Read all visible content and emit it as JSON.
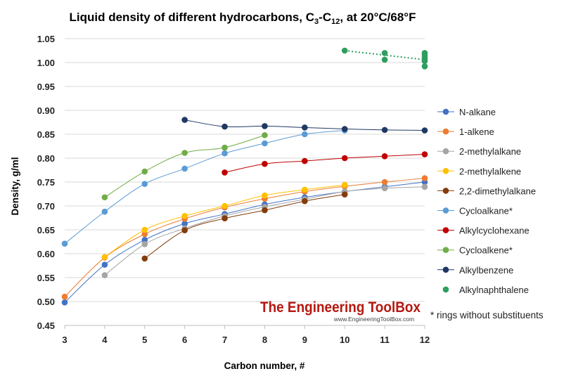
{
  "chart_data": {
    "type": "line",
    "title_parts": [
      "Liquid density of different hydrocarbons, C",
      "3",
      "-C",
      "12",
      ", at 20°C/68°F"
    ],
    "xlabel": "Carbon number, #",
    "ylabel": "Density, g/ml",
    "xlim": [
      3,
      12
    ],
    "ylim": [
      0.45,
      1.05
    ],
    "x_ticks": [
      "3",
      "4",
      "5",
      "6",
      "7",
      "8",
      "9",
      "10",
      "11",
      "12"
    ],
    "y_ticks": [
      "0.45",
      "0.50",
      "0.55",
      "0.60",
      "0.65",
      "0.70",
      "0.75",
      "0.80",
      "0.85",
      "0.90",
      "0.95",
      "1.00",
      "1.05"
    ],
    "grid": "horizontal",
    "legend_position": "right",
    "series": [
      {
        "name": "N-alkane",
        "color": "#4472c4",
        "points": [
          [
            3,
            0.498
          ],
          [
            4,
            0.577
          ],
          [
            5,
            0.629
          ],
          [
            6,
            0.663
          ],
          [
            7,
            0.683
          ],
          [
            8,
            0.703
          ],
          [
            9,
            0.718
          ],
          [
            10,
            0.73
          ],
          [
            11,
            0.74
          ],
          [
            12,
            0.75
          ]
        ]
      },
      {
        "name": "1-alkene",
        "color": "#ed7d31",
        "points": [
          [
            3,
            0.51
          ],
          [
            4,
            0.592
          ],
          [
            5,
            0.641
          ],
          [
            6,
            0.673
          ],
          [
            7,
            0.697
          ],
          [
            8,
            0.715
          ],
          [
            9,
            0.73
          ],
          [
            10,
            0.741
          ],
          [
            11,
            0.75
          ],
          [
            12,
            0.758
          ]
        ]
      },
      {
        "name": "2-methylalkane",
        "color": "#a5a5a5",
        "points": [
          [
            4,
            0.555
          ],
          [
            5,
            0.62
          ],
          [
            6,
            0.653
          ],
          [
            7,
            0.679
          ],
          [
            8,
            0.698
          ],
          [
            9,
            0.714
          ],
          [
            10,
            0.73
          ],
          [
            11,
            0.737
          ],
          [
            12,
            0.74
          ]
        ]
      },
      {
        "name": "2-methylalkene",
        "color": "#ffc000",
        "points": [
          [
            4,
            0.593
          ],
          [
            5,
            0.65
          ],
          [
            6,
            0.679
          ],
          [
            7,
            0.7
          ],
          [
            8,
            0.722
          ],
          [
            9,
            0.734
          ],
          [
            10,
            0.744
          ]
        ]
      },
      {
        "name": "2,2-dimethylalkane",
        "color": "#843c0c",
        "points": [
          [
            5,
            0.59
          ],
          [
            6,
            0.649
          ],
          [
            7,
            0.674
          ],
          [
            8,
            0.691
          ],
          [
            9,
            0.71
          ],
          [
            10,
            0.724
          ]
        ]
      },
      {
        "name": "Cycloalkane*",
        "color": "#5b9bd5",
        "points": [
          [
            3,
            0.621
          ],
          [
            4,
            0.688
          ],
          [
            5,
            0.746
          ],
          [
            6,
            0.778
          ],
          [
            7,
            0.81
          ],
          [
            8,
            0.831
          ],
          [
            9,
            0.85
          ],
          [
            10,
            0.858
          ]
        ]
      },
      {
        "name": "Alkylcyclohexane",
        "color": "#c00000",
        "points": [
          [
            7,
            0.77
          ],
          [
            8,
            0.788
          ],
          [
            9,
            0.794
          ],
          [
            10,
            0.8
          ],
          [
            11,
            0.804
          ],
          [
            12,
            0.808
          ]
        ]
      },
      {
        "name": "Cycloalkene*",
        "color": "#70ad47",
        "points": [
          [
            4,
            0.718
          ],
          [
            5,
            0.772
          ],
          [
            6,
            0.811
          ],
          [
            7,
            0.822
          ],
          [
            8,
            0.848
          ]
        ]
      },
      {
        "name": "Alkylbenzene",
        "color": "#1f3864",
        "points": [
          [
            6,
            0.88
          ],
          [
            7,
            0.866
          ],
          [
            8,
            0.867
          ],
          [
            9,
            0.864
          ],
          [
            10,
            0.861
          ],
          [
            11,
            0.859
          ],
          [
            12,
            0.858
          ]
        ]
      },
      {
        "name": "Alkylnaphthalene",
        "color": "#2e9e5e",
        "dotted": true,
        "points": [
          [
            10,
            1.025
          ],
          [
            11,
            1.02
          ],
          [
            11,
            1.006
          ],
          [
            12,
            1.02
          ],
          [
            12,
            1.016
          ],
          [
            12,
            1.012
          ],
          [
            12,
            1.007
          ],
          [
            12,
            1.003
          ],
          [
            12,
            0.992
          ]
        ],
        "trend": [
          [
            10,
            1.025
          ],
          [
            12,
            1.006
          ]
        ]
      }
    ],
    "note": "* rings without substituents"
  },
  "watermark": {
    "name": "The Engineering ToolBox",
    "url": "www.EngineeringToolBox.com"
  }
}
